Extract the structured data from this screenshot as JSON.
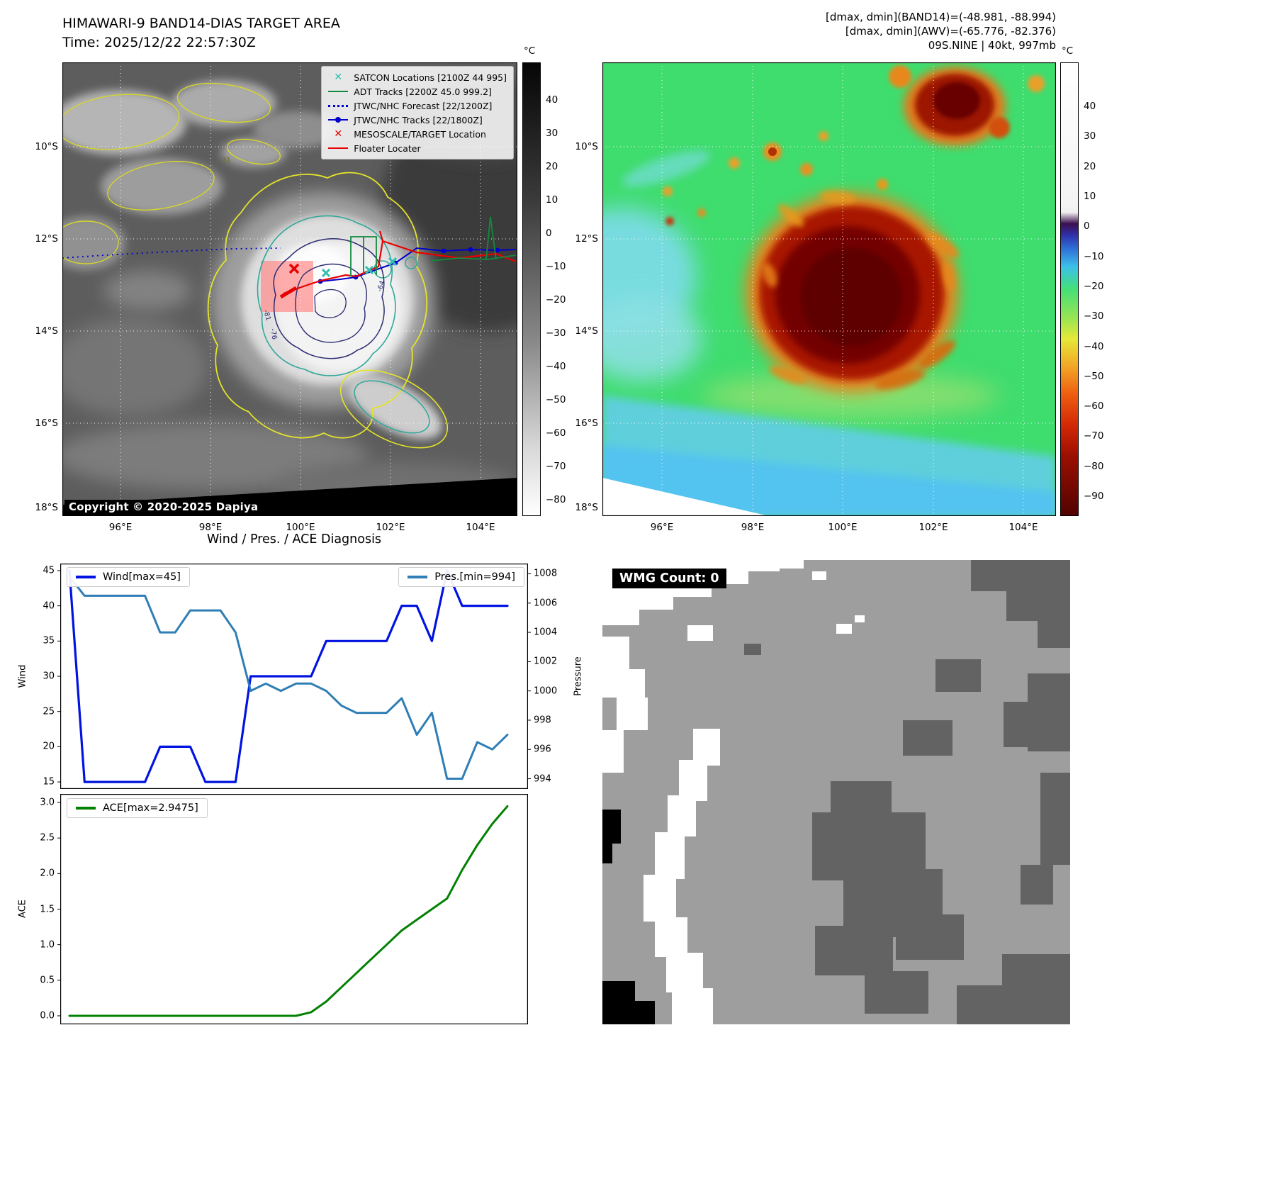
{
  "header": {
    "title": "HIMAWARI-9 BAND14-DIAS TARGET AREA",
    "time": "Time: 2025/12/22 22:57:30Z",
    "dmax_band14": "[dmax, dmin](BAND14)=(-48.981, -88.994)",
    "dmax_awv": "[dmax, dmin](AWV)=(-65.776, -82.376)",
    "storm_info": "09S.NINE | 40kt, 997mb"
  },
  "band14_map": {
    "copyright": "Copyright © 2020-2025 Dapiya",
    "contour_labels": [
      "-31",
      "-64",
      "-76",
      "-81"
    ],
    "x_ticks": [
      "96°E",
      "98°E",
      "100°E",
      "102°E",
      "104°E"
    ],
    "y_ticks": [
      "10°S",
      "12°S",
      "14°S",
      "16°S",
      "18°S"
    ],
    "colorbar": {
      "unit": "°C",
      "ticks": [
        40,
        30,
        20,
        10,
        0,
        -10,
        -20,
        -30,
        -40,
        -50,
        -60,
        -70,
        -80
      ]
    },
    "legend": [
      {
        "label": "SATCON Locations [2100Z 44 995]",
        "marker": "x",
        "color": "#2fbfb0"
      },
      {
        "label": "ADT Tracks [2200Z 45.0 999.2]",
        "marker": "line",
        "color": "#128a3e"
      },
      {
        "label": "JTWC/NHC Forecast [22/1200Z]",
        "marker": "dotted",
        "color": "#0000cc"
      },
      {
        "label": "JTWC/NHC Tracks [22/1800Z]",
        "marker": "line-dot",
        "color": "#0000cc"
      },
      {
        "label": "MESOSCALE/TARGET Location",
        "marker": "x",
        "color": "#e80000"
      },
      {
        "label": "Floater Locater",
        "marker": "line",
        "color": "#e80000"
      }
    ]
  },
  "awv_map": {
    "x_ticks": [
      "96°E",
      "98°E",
      "100°E",
      "102°E",
      "104°E"
    ],
    "y_ticks": [
      "10°S",
      "12°S",
      "14°S",
      "16°S",
      "18°S"
    ],
    "colorbar": {
      "unit": "°C",
      "ticks": [
        40,
        30,
        20,
        10,
        0,
        -10,
        -20,
        -30,
        -40,
        -50,
        -60,
        -70,
        -80,
        -90
      ]
    }
  },
  "wmg": {
    "label": "WMG Count: 0"
  },
  "chart_data": [
    {
      "type": "line",
      "title": "Wind / Pres. / ACE Diagnosis",
      "x": [
        0,
        1,
        2,
        3,
        4,
        5,
        6,
        7,
        8,
        9,
        10,
        11,
        12,
        13,
        14,
        15,
        16,
        17,
        18,
        19,
        20,
        21,
        22,
        23,
        24,
        25,
        26,
        27,
        28,
        29
      ],
      "series": [
        {
          "name": "Wind[max=45]",
          "axis": "left",
          "color": "#0013e0",
          "width": 3.2,
          "values": [
            45,
            15,
            15,
            15,
            15,
            15,
            20,
            20,
            20,
            15,
            15,
            15,
            30,
            30,
            30,
            30,
            30,
            35,
            35,
            35,
            35,
            35,
            40,
            40,
            35,
            45,
            40,
            40,
            40,
            40
          ]
        },
        {
          "name": "Pres.[min=994]",
          "axis": "right",
          "color": "#2f7eb5",
          "width": 3,
          "values": [
            1007.8,
            1006.5,
            1006.5,
            1006.5,
            1006.5,
            1006.5,
            1004,
            1004,
            1005.5,
            1005.5,
            1005.5,
            1004,
            1000,
            1000.5,
            1000,
            1000.5,
            1000.5,
            1000,
            999,
            998.5,
            998.5,
            998.5,
            999.5,
            997,
            998.5,
            994,
            994,
            996.5,
            996,
            997
          ]
        }
      ],
      "ylabel": "Wind",
      "y2label": "Pressure",
      "ylim": [
        14,
        46
      ],
      "y2lim": [
        993.3,
        1008.7
      ],
      "yticks": [
        15,
        20,
        25,
        30,
        35,
        40,
        45
      ],
      "y2ticks": [
        994,
        996,
        998,
        1000,
        1002,
        1004,
        1006,
        1008
      ],
      "legend_position": "top"
    },
    {
      "type": "line",
      "x": [
        0,
        1,
        2,
        3,
        4,
        5,
        6,
        7,
        8,
        9,
        10,
        11,
        12,
        13,
        14,
        15,
        16,
        17,
        18,
        19,
        20,
        21,
        22,
        23,
        24,
        25,
        26,
        27,
        28,
        29
      ],
      "series": [
        {
          "name": "ACE[max=2.9475]",
          "axis": "left",
          "color": "#038103",
          "width": 3,
          "values": [
            0,
            0,
            0,
            0,
            0,
            0,
            0,
            0,
            0,
            0,
            0,
            0,
            0,
            0,
            0,
            0,
            0.05,
            0.2,
            0.4,
            0.6,
            0.8,
            1.0,
            1.2,
            1.35,
            1.5,
            1.65,
            2.05,
            2.4,
            2.7,
            2.9475
          ]
        }
      ],
      "ylabel": "ACE",
      "ylim": [
        -0.12,
        3.12
      ],
      "yticks": [
        0.0,
        0.5,
        1.0,
        1.5,
        2.0,
        2.5,
        3.0
      ],
      "tick_decimals": 1
    }
  ]
}
